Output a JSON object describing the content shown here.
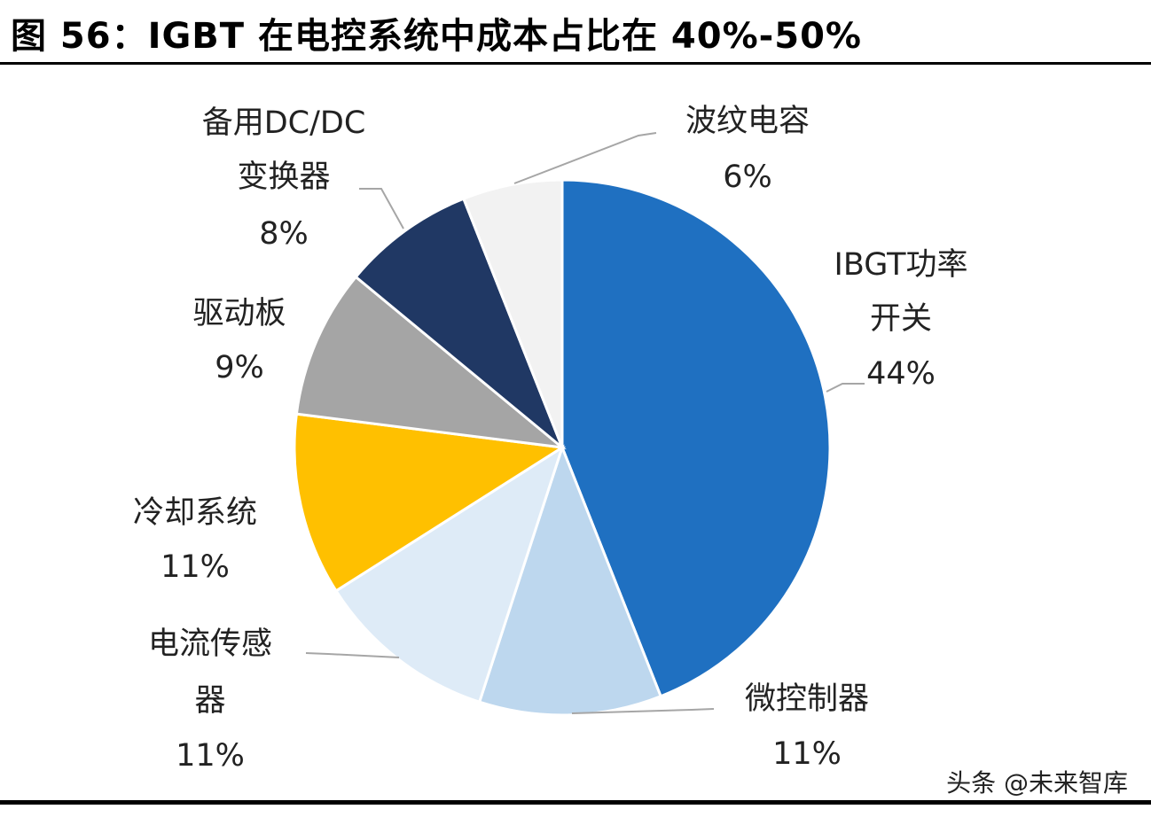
{
  "title": "图 56：IGBT 在电控系统中成本占比在 40%-50%",
  "watermark": "头条 @未来智库",
  "chart_data": {
    "type": "pie",
    "start": "12 o'clock, clockwise",
    "slices": [
      {
        "label_lines": [
          "IBGT功率",
          "开关"
        ],
        "value": 44,
        "value_label": "44%",
        "color": "#1F70C1"
      },
      {
        "label_lines": [
          "微控制器"
        ],
        "value": 11,
        "value_label": "11%",
        "color": "#BDD7EE"
      },
      {
        "label_lines": [
          "电流传感",
          "器"
        ],
        "value": 11,
        "value_label": "11%",
        "color": "#DEEBF7"
      },
      {
        "label_lines": [
          "冷却系统"
        ],
        "value": 11,
        "value_label": "11%",
        "color": "#FFC000"
      },
      {
        "label_lines": [
          "驱动板"
        ],
        "value": 9,
        "value_label": "9%",
        "color": "#A5A5A5"
      },
      {
        "label_lines": [
          "备用DC/DC",
          "变换器"
        ],
        "value": 8,
        "value_label": "8%",
        "color": "#203864"
      },
      {
        "label_lines": [
          "波纹电容"
        ],
        "value": 6,
        "value_label": "6%",
        "color": "#F2F2F2"
      }
    ]
  }
}
